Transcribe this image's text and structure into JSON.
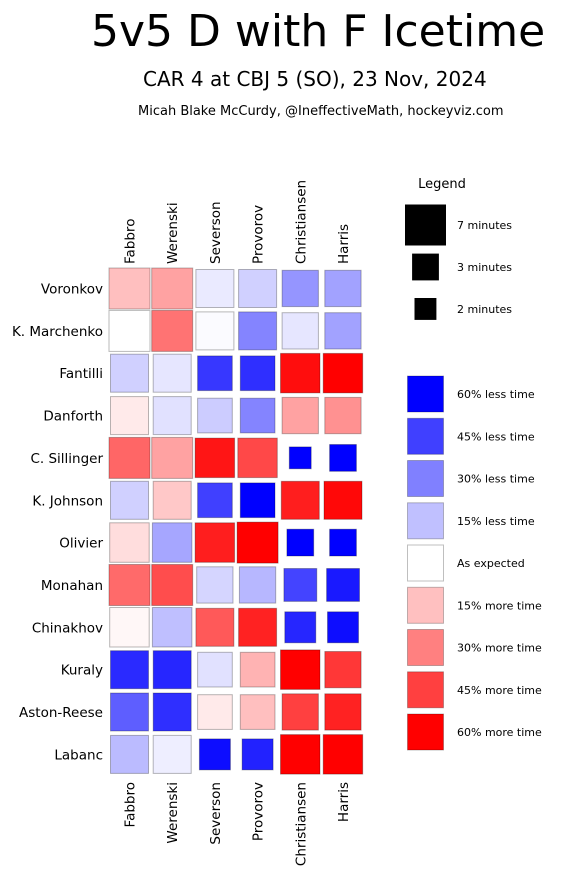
{
  "header": {
    "title": "5v5 D with F Icetime",
    "subtitle": "CAR 4 at CBJ 5 (SO), 23 Nov, 2024",
    "credit": "Micah Blake McCurdy, @IneffectiveMath, hockeyviz.com"
  },
  "chart_data": {
    "type": "heatmap",
    "title": "5v5 D with F Icetime",
    "columns": [
      "Fabbro",
      "Werenski",
      "Severson",
      "Provorov",
      "Christiansen",
      "Harris"
    ],
    "rows": [
      "Voronkov",
      "K. Marchenko",
      "Fantilli",
      "Danforth",
      "C. Sillinger",
      "K. Johnson",
      "Olivier",
      "Monahan",
      "Chinakhov",
      "Kuraly",
      "Aston-Reese",
      "Labanc"
    ],
    "value_description": "cell size = minutes together; color = deviation from expected time (negative = less, positive = more)",
    "minutes": [
      [
        7,
        7,
        6,
        6,
        5.5,
        5.5
      ],
      [
        7,
        7,
        6,
        6,
        5.5,
        5.5
      ],
      [
        6,
        6,
        5,
        5,
        6.5,
        6.5
      ],
      [
        6,
        6,
        5,
        5,
        5.5,
        5.5
      ],
      [
        7,
        7,
        6.5,
        6.5,
        2,
        3
      ],
      [
        6,
        6,
        5,
        5,
        6,
        6
      ],
      [
        6.5,
        6.5,
        6.5,
        7,
        3,
        3
      ],
      [
        7,
        7,
        5.5,
        5.5,
        4.5,
        4.5
      ],
      [
        6.5,
        6.5,
        6,
        6,
        4,
        4
      ],
      [
        6,
        6,
        5,
        5,
        6.5,
        5.5
      ],
      [
        6,
        6,
        5,
        5,
        5.5,
        5.5
      ],
      [
        6,
        6,
        4,
        4,
        6.5,
        6.5
      ]
    ],
    "deviation_pct": [
      [
        15,
        22,
        -5,
        -11,
        -25,
        -22
      ],
      [
        0,
        33,
        -1,
        -29,
        -6,
        -22
      ],
      [
        -11,
        -6,
        -47,
        -49,
        57,
        60
      ],
      [
        5,
        -7,
        -12,
        -29,
        22,
        26
      ],
      [
        36,
        22,
        55,
        43,
        -60,
        -60
      ],
      [
        -11,
        13,
        -45,
        -60,
        53,
        58
      ],
      [
        8,
        -21,
        53,
        60,
        -60,
        -60
      ],
      [
        35,
        42,
        -10,
        -17,
        -44,
        -54
      ],
      [
        2,
        -15,
        39,
        52,
        -51,
        -57
      ],
      [
        -50,
        -51,
        -7,
        18,
        60,
        47
      ],
      [
        -38,
        -49,
        5,
        15,
        45,
        52
      ],
      [
        -16,
        -4,
        -57,
        -52,
        60,
        60
      ]
    ],
    "legend": {
      "title": "Legend",
      "sizes": [
        {
          "label": "7 minutes",
          "minutes": 7
        },
        {
          "label": "3 minutes",
          "minutes": 3
        },
        {
          "label": "2 minutes",
          "minutes": 2
        }
      ],
      "colors": [
        {
          "label": "60% less time",
          "color": "#0000ff"
        },
        {
          "label": "45% less time",
          "color": "#4040ff"
        },
        {
          "label": "30% less time",
          "color": "#8080ff"
        },
        {
          "label": "15% less time",
          "color": "#c0c0ff"
        },
        {
          "label": "As expected",
          "color": "#ffffff"
        },
        {
          "label": "15% more time",
          "color": "#ffc0c0"
        },
        {
          "label": "30% more time",
          "color": "#ff8080"
        },
        {
          "label": "45% more time",
          "color": "#ff4040"
        },
        {
          "label": "60% more time",
          "color": "#ff0000"
        }
      ]
    }
  }
}
